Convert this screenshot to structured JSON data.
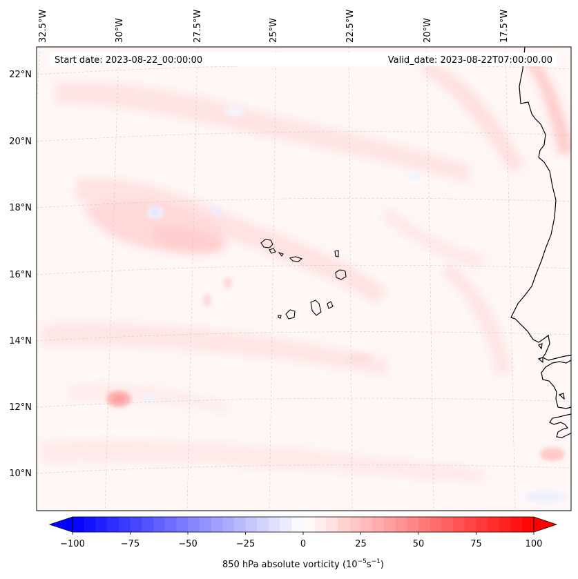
{
  "map": {
    "start_date": "Start date: 2023-08-22_00:00:00",
    "valid_date": "Valid_date: 2023-08-22T07:00:00.00",
    "lon_labels": [
      "32.5°W",
      "30°W",
      "27.5°W",
      "25°W",
      "22.5°W",
      "20°W",
      "17.5°W"
    ],
    "lat_labels": [
      "22°N",
      "20°N",
      "18°N",
      "16°N",
      "14°N",
      "12°N",
      "10°N"
    ],
    "features": [
      "Cape Verde Islands",
      "West African coastline"
    ]
  },
  "colorbar": {
    "min": -100,
    "max": 100,
    "step": 5,
    "tick_labels": [
      "−100",
      "−75",
      "−50",
      "−25",
      "0",
      "25",
      "50",
      "75",
      "100"
    ],
    "label_prefix": "850 hPa absolute vorticity (10",
    "label_exp1": "−5",
    "label_mid": "s",
    "label_exp2": "−1",
    "label_suffix": ")"
  },
  "colors": {
    "negative": "#0000ff",
    "positive": "#ff0000",
    "neutral": "#ffffff",
    "background_tint": "#fff5f5"
  }
}
